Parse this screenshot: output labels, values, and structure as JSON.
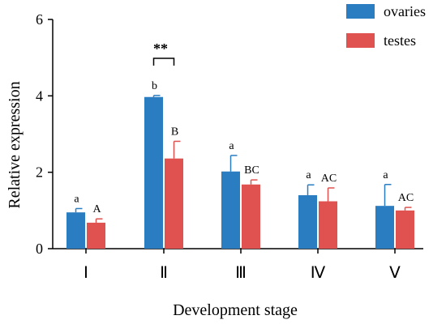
{
  "chart_data": {
    "type": "bar",
    "categories": [
      "Ⅰ",
      "Ⅱ",
      "Ⅲ",
      "Ⅳ",
      "Ⅴ"
    ],
    "series": [
      {
        "name": "ovaries",
        "color": "#2a7dc1",
        "values": [
          0.95,
          3.97,
          2.02,
          1.4,
          1.12
        ],
        "errors": [
          0.1,
          0.04,
          0.42,
          0.27,
          0.56
        ],
        "letters": [
          "a",
          "b",
          "a",
          "a",
          "a"
        ]
      },
      {
        "name": "testes",
        "color": "#e0524f",
        "values": [
          0.68,
          2.36,
          1.68,
          1.24,
          1.0
        ],
        "errors": [
          0.1,
          0.45,
          0.12,
          0.35,
          0.08
        ],
        "letters": [
          "A",
          "B",
          "BC",
          "AC",
          "AC"
        ]
      }
    ],
    "xlabel": "Development stage",
    "ylabel": "Relative expression",
    "ylim": [
      0,
      6
    ],
    "yticks": [
      0,
      2,
      4,
      6
    ],
    "legend_position": "top-right",
    "grid": false,
    "significance": [
      {
        "category": "Ⅱ",
        "label": "**"
      }
    ]
  }
}
